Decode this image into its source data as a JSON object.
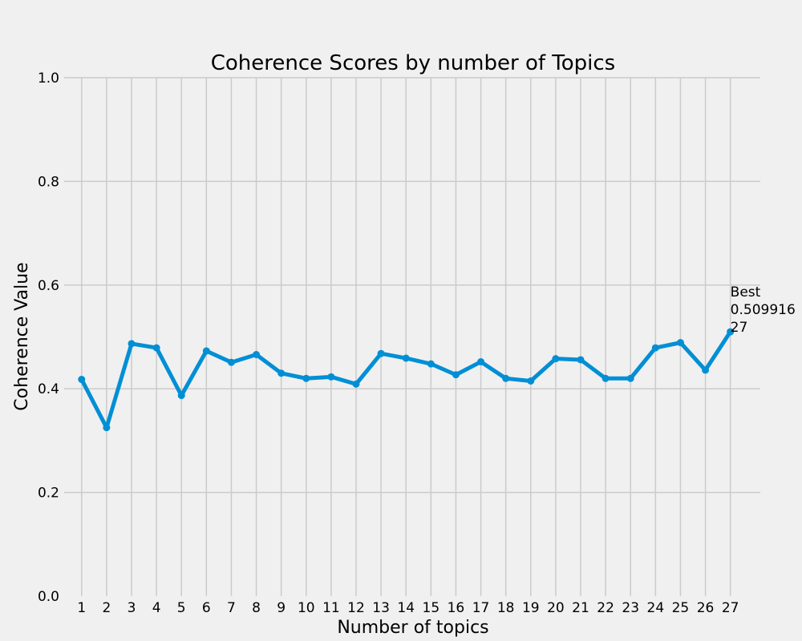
{
  "chart_data": {
    "type": "line",
    "title": "Coherence Scores by number of Topics",
    "xlabel": "Number of topics",
    "ylabel": "Coherence Value",
    "x": [
      1,
      2,
      3,
      4,
      5,
      6,
      7,
      8,
      9,
      10,
      11,
      12,
      13,
      14,
      15,
      16,
      17,
      18,
      19,
      20,
      21,
      22,
      23,
      24,
      25,
      26,
      27
    ],
    "series": [
      {
        "values": [
          0.418,
          0.325,
          0.487,
          0.479,
          0.387,
          0.473,
          0.451,
          0.466,
          0.43,
          0.42,
          0.423,
          0.409,
          0.468,
          0.459,
          0.448,
          0.427,
          0.452,
          0.42,
          0.415,
          0.458,
          0.456,
          0.42,
          0.42,
          0.479,
          0.489,
          0.436,
          0.509916
        ],
        "color": "#008fd5"
      }
    ],
    "xticks": [
      "1",
      "2",
      "3",
      "4",
      "5",
      "6",
      "7",
      "8",
      "9",
      "10",
      "11",
      "12",
      "13",
      "14",
      "15",
      "16",
      "17",
      "18",
      "19",
      "20",
      "21",
      "22",
      "23",
      "24",
      "25",
      "26",
      "27"
    ],
    "yticks": [
      "0.0",
      "0.2",
      "0.4",
      "0.6",
      "0.8",
      "1.0"
    ],
    "yticks_values": [
      0,
      0.2,
      0.4,
      0.6,
      0.8,
      1.0
    ],
    "ylim": [
      0,
      1.0
    ],
    "xlim": [
      0.3,
      28.2
    ],
    "grid": true,
    "annotation": {
      "lines": [
        "Best",
        "0.509916",
        "27"
      ],
      "x": 27,
      "y": 0.509916
    }
  }
}
